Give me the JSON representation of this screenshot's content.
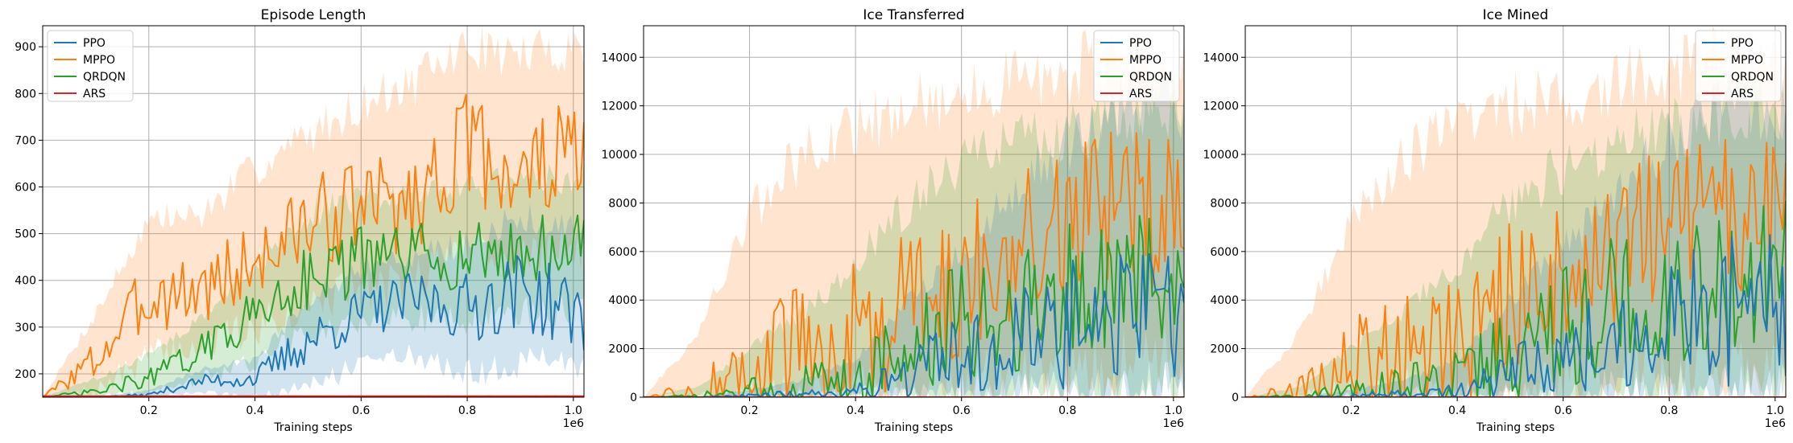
{
  "figure": {
    "xlabel": "Training steps",
    "x_scale_text": "1e6"
  },
  "colors": {
    "PPO": "#1f77b4",
    "MPPO": "#ff7f0e",
    "QRDQN": "#2ca02c",
    "ARS": "#d62728",
    "grid": "#b0b0b0"
  },
  "chart_data": [
    {
      "type": "line",
      "title": "Episode Length",
      "xlabel": "Training steps",
      "ylabel": "",
      "xlim": [
        0.0,
        1.02
      ],
      "ylim": [
        150,
        945
      ],
      "x_ticks": [
        0.2,
        0.4,
        0.6,
        0.8,
        1.0
      ],
      "x_tick_labels": [
        "0.2",
        "0.4",
        "0.6",
        "0.8",
        "1.0"
      ],
      "y_ticks": [
        200,
        300,
        400,
        500,
        600,
        700,
        800,
        900
      ],
      "y_tick_labels": [
        "200",
        "300",
        "400",
        "500",
        "600",
        "700",
        "800",
        "900"
      ],
      "grid": true,
      "legend": "upper left",
      "series": [
        {
          "name": "PPO",
          "x": [
            0,
            0.1,
            0.2,
            0.3,
            0.4,
            0.5,
            0.6,
            0.7,
            0.8,
            0.9,
            1.0
          ],
          "values": [
            150,
            150,
            155,
            185,
            190,
            270,
            330,
            360,
            340,
            380,
            330
          ],
          "band": [
            [
              150,
              150
            ],
            [
              150,
              150
            ],
            [
              150,
              165
            ],
            [
              160,
              210
            ],
            [
              150,
              230
            ],
            [
              170,
              360
            ],
            [
              220,
              420
            ],
            [
              240,
              450
            ],
            [
              200,
              480
            ],
            [
              220,
              530
            ],
            [
              220,
              520
            ]
          ]
        },
        {
          "name": "MPPO",
          "x": [
            0,
            0.1,
            0.2,
            0.3,
            0.4,
            0.5,
            0.6,
            0.7,
            0.8,
            0.9,
            1.0
          ],
          "values": [
            150,
            230,
            370,
            380,
            440,
            520,
            560,
            570,
            690,
            620,
            680
          ],
          "band": [
            [
              150,
              150
            ],
            [
              160,
              330
            ],
            [
              240,
              530
            ],
            [
              260,
              540
            ],
            [
              300,
              640
            ],
            [
              350,
              710
            ],
            [
              380,
              780
            ],
            [
              400,
              820
            ],
            [
              480,
              900
            ],
            [
              450,
              880
            ],
            [
              470,
              900
            ]
          ]
        },
        {
          "name": "QRDQN",
          "x": [
            0,
            0.1,
            0.2,
            0.3,
            0.4,
            0.5,
            0.6,
            0.7,
            0.8,
            0.9,
            1.0
          ],
          "values": [
            150,
            160,
            190,
            250,
            330,
            410,
            440,
            450,
            450,
            460,
            470
          ],
          "band": [
            [
              150,
              150
            ],
            [
              150,
              190
            ],
            [
              160,
              240
            ],
            [
              190,
              320
            ],
            [
              230,
              430
            ],
            [
              280,
              540
            ],
            [
              310,
              580
            ],
            [
              320,
              590
            ],
            [
              310,
              600
            ],
            [
              330,
              610
            ],
            [
              340,
              620
            ]
          ]
        },
        {
          "name": "ARS",
          "x": [
            0,
            1.02
          ],
          "values": [
            152,
            152
          ],
          "band": [
            [
              150,
              154
            ],
            [
              150,
              154
            ]
          ]
        }
      ]
    },
    {
      "type": "line",
      "title": "Ice Transferred",
      "xlabel": "Training steps",
      "ylabel": "",
      "xlim": [
        0.0,
        1.02
      ],
      "ylim": [
        0,
        15300
      ],
      "x_ticks": [
        0.2,
        0.4,
        0.6,
        0.8,
        1.0
      ],
      "x_tick_labels": [
        "0.2",
        "0.4",
        "0.6",
        "0.8",
        "1.0"
      ],
      "y_ticks": [
        0,
        2000,
        4000,
        6000,
        8000,
        10000,
        12000,
        14000
      ],
      "y_tick_labels": [
        "0",
        "2000",
        "4000",
        "6000",
        "8000",
        "10000",
        "12000",
        "14000"
      ],
      "grid": true,
      "legend": "upper right",
      "series": [
        {
          "name": "PPO",
          "x": [
            0,
            0.1,
            0.2,
            0.3,
            0.4,
            0.5,
            0.6,
            0.7,
            0.8,
            0.9,
            1.0
          ],
          "values": [
            0,
            0,
            50,
            150,
            200,
            1000,
            1800,
            2600,
            3200,
            3800,
            3500
          ],
          "band": [
            [
              0,
              0
            ],
            [
              0,
              0
            ],
            [
              0,
              300
            ],
            [
              0,
              700
            ],
            [
              0,
              1500
            ],
            [
              0,
              4000
            ],
            [
              0,
              6000
            ],
            [
              0,
              8500
            ],
            [
              0,
              10500
            ],
            [
              0,
              12000
            ],
            [
              0,
              12000
            ]
          ]
        },
        {
          "name": "MPPO",
          "x": [
            0,
            0.1,
            0.2,
            0.3,
            0.4,
            0.5,
            0.6,
            0.7,
            0.8,
            0.9,
            1.0
          ],
          "values": [
            0,
            100,
            1200,
            2000,
            2600,
            4000,
            5000,
            6000,
            7000,
            7800,
            7500
          ],
          "band": [
            [
              0,
              0
            ],
            [
              0,
              2500
            ],
            [
              0,
              7500
            ],
            [
              0,
              10000
            ],
            [
              0,
              11000
            ],
            [
              0,
              12000
            ],
            [
              500,
              12500
            ],
            [
              1000,
              13000
            ],
            [
              1000,
              13500
            ],
            [
              1500,
              14000
            ],
            [
              1500,
              13500
            ]
          ]
        },
        {
          "name": "QRDQN",
          "x": [
            0,
            0.1,
            0.2,
            0.3,
            0.4,
            0.5,
            0.6,
            0.7,
            0.8,
            0.9,
            1.0
          ],
          "values": [
            0,
            20,
            200,
            400,
            800,
            1800,
            3000,
            3800,
            4200,
            4600,
            5000
          ],
          "band": [
            [
              0,
              0
            ],
            [
              0,
              400
            ],
            [
              0,
              2000
            ],
            [
              0,
              3500
            ],
            [
              0,
              5500
            ],
            [
              0,
              8000
            ],
            [
              0,
              9500
            ],
            [
              0,
              10500
            ],
            [
              0,
              11000
            ],
            [
              0,
              11500
            ],
            [
              0,
              12000
            ]
          ]
        },
        {
          "name": "ARS",
          "x": [
            0,
            1.02
          ],
          "values": [
            0,
            0
          ],
          "band": [
            [
              0,
              0
            ],
            [
              0,
              0
            ]
          ]
        }
      ]
    },
    {
      "type": "line",
      "title": "Ice Mined",
      "xlabel": "Training steps",
      "ylabel": "",
      "xlim": [
        0.0,
        1.02
      ],
      "ylim": [
        0,
        15300
      ],
      "x_ticks": [
        0.2,
        0.4,
        0.6,
        0.8,
        1.0
      ],
      "x_tick_labels": [
        "0.2",
        "0.4",
        "0.6",
        "0.8",
        "1.0"
      ],
      "y_ticks": [
        0,
        2000,
        4000,
        6000,
        8000,
        10000,
        12000,
        14000
      ],
      "y_tick_labels": [
        "0",
        "2000",
        "4000",
        "6000",
        "8000",
        "10000",
        "12000",
        "14000"
      ],
      "grid": true,
      "legend": "upper right",
      "series": [
        {
          "name": "PPO",
          "x": [
            0,
            0.1,
            0.2,
            0.3,
            0.4,
            0.5,
            0.6,
            0.7,
            0.8,
            0.9,
            1.0
          ],
          "values": [
            0,
            0,
            50,
            150,
            200,
            1000,
            1800,
            2600,
            3200,
            3800,
            3500
          ],
          "band": [
            [
              0,
              0
            ],
            [
              0,
              0
            ],
            [
              0,
              300
            ],
            [
              0,
              700
            ],
            [
              0,
              1500
            ],
            [
              0,
              4000
            ],
            [
              0,
              6000
            ],
            [
              0,
              8500
            ],
            [
              0,
              10500
            ],
            [
              0,
              12000
            ],
            [
              0,
              12000
            ]
          ]
        },
        {
          "name": "MPPO",
          "x": [
            0,
            0.1,
            0.2,
            0.3,
            0.4,
            0.5,
            0.6,
            0.7,
            0.8,
            0.9,
            1.0
          ],
          "values": [
            0,
            100,
            1200,
            2000,
            2600,
            4000,
            5000,
            6000,
            7000,
            7800,
            7500
          ],
          "band": [
            [
              0,
              0
            ],
            [
              0,
              2500
            ],
            [
              0,
              7500
            ],
            [
              0,
              10000
            ],
            [
              0,
              11000
            ],
            [
              0,
              12000
            ],
            [
              500,
              12500
            ],
            [
              1000,
              13000
            ],
            [
              1000,
              13500
            ],
            [
              1500,
              14000
            ],
            [
              1500,
              13500
            ]
          ]
        },
        {
          "name": "QRDQN",
          "x": [
            0,
            0.1,
            0.2,
            0.3,
            0.4,
            0.5,
            0.6,
            0.7,
            0.8,
            0.9,
            1.0
          ],
          "values": [
            0,
            20,
            200,
            400,
            800,
            1800,
            3000,
            3800,
            4200,
            4600,
            5000
          ],
          "band": [
            [
              0,
              0
            ],
            [
              0,
              400
            ],
            [
              0,
              2000
            ],
            [
              0,
              3500
            ],
            [
              0,
              5500
            ],
            [
              0,
              8000
            ],
            [
              0,
              9500
            ],
            [
              0,
              10500
            ],
            [
              0,
              11000
            ],
            [
              0,
              11500
            ],
            [
              0,
              12000
            ]
          ]
        },
        {
          "name": "ARS",
          "x": [
            0,
            1.02
          ],
          "values": [
            0,
            0
          ],
          "band": [
            [
              0,
              0
            ],
            [
              0,
              0
            ]
          ]
        }
      ]
    }
  ]
}
